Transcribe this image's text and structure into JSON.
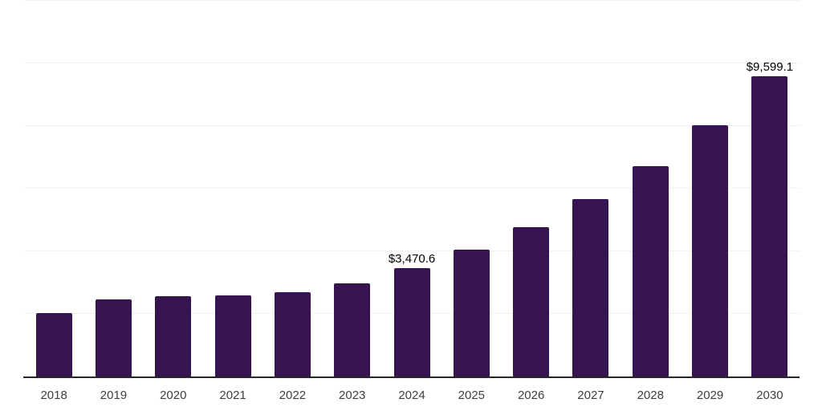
{
  "chart": {
    "background_color": "#ffffff",
    "bar_color": "#361450",
    "gridline_color": "#f2f2f2",
    "axis_line_color": "#262626",
    "tick_label_color": "#3d3d3d",
    "value_label_color": "#000000"
  },
  "chart_data": {
    "type": "bar",
    "title": "",
    "xlabel": "",
    "ylabel": "",
    "categories": [
      "2018",
      "2019",
      "2020",
      "2021",
      "2022",
      "2023",
      "2024",
      "2025",
      "2026",
      "2027",
      "2028",
      "2029",
      "2030"
    ],
    "values": [
      2020,
      2465,
      2560,
      2585,
      2705,
      2970,
      3470.6,
      4065,
      4770,
      5660,
      6720,
      8020,
      9599.1
    ],
    "data_labels": [
      "",
      "",
      "",
      "",
      "",
      "",
      "$3,470.6",
      "",
      "",
      "",
      "",
      "",
      "$9,599.1"
    ],
    "ylim": [
      0,
      12000
    ],
    "gridline_values": [
      2000,
      4000,
      6000,
      8000,
      10000,
      12000
    ],
    "grid": "horizontal-only",
    "legend": "none",
    "y_axis_tick_labels_visible": false
  }
}
